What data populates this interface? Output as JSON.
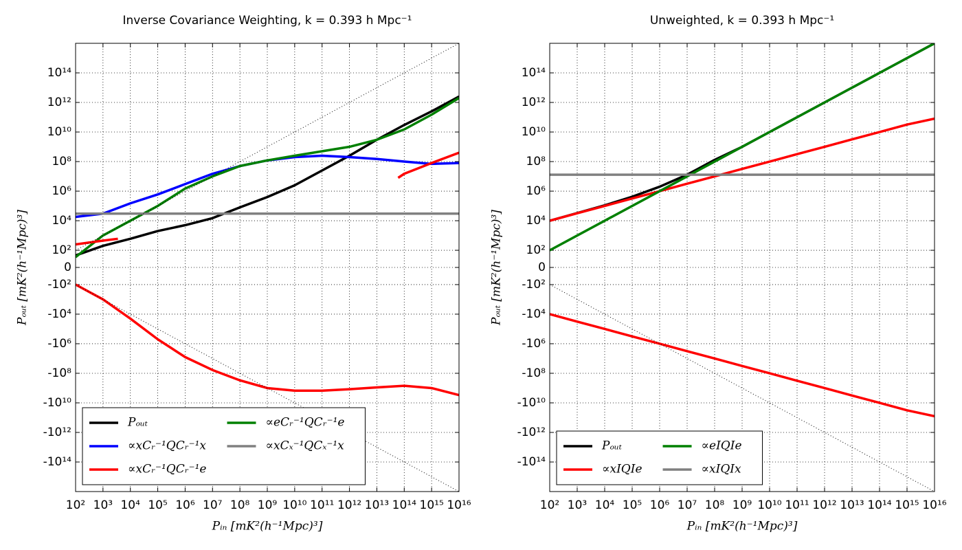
{
  "chart_data": [
    {
      "type": "line",
      "title": "Inverse Covariance Weighting, k = 0.393 h Mpc⁻¹",
      "x_label": "Pᵢₙ [mK²(h⁻¹Mpc)³]",
      "y_label": "Pₒᵤₜ [mK²(h⁻¹Mpc)³]",
      "xscale": "log",
      "yscale": "symlog",
      "linthresh": 100,
      "grid": true,
      "legend": {
        "loc": "lower left",
        "ncol": 2
      },
      "xlim": [
        100.0,
        1e+16
      ],
      "ylim": [
        -1e+16,
        1e+16
      ],
      "xticks": [
        {
          "value": 100.0,
          "label": "10²"
        },
        {
          "value": 1000.0,
          "label": "10³"
        },
        {
          "value": 10000.0,
          "label": "10⁴"
        },
        {
          "value": 100000.0,
          "label": "10⁵"
        },
        {
          "value": 1000000.0,
          "label": "10⁶"
        },
        {
          "value": 10000000.0,
          "label": "10⁷"
        },
        {
          "value": 100000000.0,
          "label": "10⁸"
        },
        {
          "value": 1000000000.0,
          "label": "10⁹"
        },
        {
          "value": 10000000000.0,
          "label": "10¹⁰"
        },
        {
          "value": 100000000000.0,
          "label": "10¹¹"
        },
        {
          "value": 1000000000000.0,
          "label": "10¹²"
        },
        {
          "value": 10000000000000.0,
          "label": "10¹³"
        },
        {
          "value": 100000000000000.0,
          "label": "10¹⁴"
        },
        {
          "value": 1000000000000000.0,
          "label": "10¹⁵"
        },
        {
          "value": 1e+16,
          "label": "10¹⁶"
        }
      ],
      "yticks": [
        {
          "value": 100000000000000.0,
          "label": "10¹⁴"
        },
        {
          "value": 1000000000000.0,
          "label": "10¹²"
        },
        {
          "value": 10000000000.0,
          "label": "10¹⁰"
        },
        {
          "value": 100000000.0,
          "label": "10⁸"
        },
        {
          "value": 1000000.0,
          "label": "10⁶"
        },
        {
          "value": 10000.0,
          "label": "10⁴"
        },
        {
          "value": 100.0,
          "label": "10²"
        },
        0,
        {
          "value": -100.0,
          "label": "-10²"
        },
        {
          "value": -10000.0,
          "label": "-10⁴"
        },
        {
          "value": -1000000.0,
          "label": "-10⁶"
        },
        {
          "value": -100000000.0,
          "label": "-10⁸"
        },
        {
          "value": -10000000000.0,
          "label": "-10¹⁰"
        },
        {
          "value": -1000000000000.0,
          "label": "-10¹²"
        },
        {
          "value": -100000000000000.0,
          "label": "-10¹⁴"
        }
      ],
      "x": [
        100.0,
        1000.0,
        10000.0,
        100000.0,
        1000000.0,
        10000000.0,
        100000000.0,
        1000000000.0,
        10000000000.0,
        100000000000.0,
        1000000000000.0,
        10000000000000.0,
        100000000000000.0,
        1000000000000000.0,
        1e+16
      ],
      "series": [
        {
          "name": "Pₒᵤₜ",
          "color": "#000000",
          "values": [
            70,
            200,
            600,
            2000,
            5000,
            15000,
            80000,
            400000,
            2500000,
            25000000,
            250000000,
            3000000000,
            30000000000,
            250000000000,
            2500000000000
          ]
        },
        {
          "name": "∝xCᵣ⁻¹QCᵣ⁻¹x",
          "color": "#0000ff",
          "values": [
            18000,
            30000,
            150000,
            600000,
            3000000,
            15000000,
            50000000,
            120000000,
            200000000,
            250000000,
            200000000,
            150000000,
            100000000,
            70000000,
            80000000
          ]
        },
        {
          "name": "∝xCᵣ⁻¹QCᵣ⁻¹e",
          "color": "#ff0000",
          "values": [
            -100,
            -1000,
            -20000,
            -500000,
            -8000000,
            -60000000,
            -300000000,
            -1000000000,
            -1500000000,
            -1500000000,
            -1200000000,
            -900000000,
            -700000000,
            -1000000000,
            -3000000000
          ]
        },
        {
          "name": "∝eCᵣ⁻¹QCᵣ⁻¹e",
          "color": "#008000",
          "values": [
            60,
            1000,
            10000,
            100000,
            1500000,
            10000000,
            50000000,
            120000000,
            250000000,
            500000000,
            1000000000,
            3000000000,
            15000000000,
            150000000000,
            2000000000000
          ]
        },
        {
          "name": "∝xCₓ⁻¹QCₓ⁻¹x",
          "color": "#808080",
          "values": [
            30000,
            30000,
            30000,
            30000,
            30000,
            30000,
            30000,
            30000,
            30000,
            30000,
            30000,
            30000,
            30000,
            30000,
            30000
          ]
        },
        {
          "color": "#ff0000",
          "x": [
            100.0,
            1000.0,
            3500
          ],
          "values": [
            250,
            450,
            600
          ]
        },
        {
          "color": "#ff0000",
          "x": [
            60000000000000.0,
            100000000000000.0,
            1000000000000000.0,
            1e+16
          ],
          "values": [
            8000000,
            15000000,
            80000000,
            400000000
          ]
        },
        {
          "color": "#000000",
          "style": "dotted",
          "values": [
            100.0,
            1000.0,
            10000.0,
            100000.0,
            1000000.0,
            10000000.0,
            100000000.0,
            1000000000.0,
            10000000000.0,
            100000000000.0,
            1000000000000.0,
            10000000000000.0,
            100000000000000.0,
            1000000000000000.0,
            1e+16
          ]
        },
        {
          "color": "#000000",
          "style": "dotted",
          "values": [
            -100.0,
            -1000.0,
            -10000.0,
            -100000.0,
            -1000000.0,
            -10000000.0,
            -100000000.0,
            -1000000000.0,
            -10000000000.0,
            -100000000000.0,
            -1000000000000.0,
            -10000000000000.0,
            -100000000000000.0,
            -1000000000000000.0,
            -1e+16
          ]
        }
      ]
    },
    {
      "type": "line",
      "title": "Unweighted, k = 0.393 h Mpc⁻¹",
      "x_label": "Pᵢₙ [mK²(h⁻¹Mpc)³]",
      "y_label": "Pₒᵤₜ [mK²(h⁻¹Mpc)³]",
      "xscale": "log",
      "yscale": "symlog",
      "linthresh": 100,
      "grid": true,
      "legend": {
        "loc": "lower left",
        "ncol": 2
      },
      "xlim": [
        100.0,
        1e+16
      ],
      "ylim": [
        -1e+16,
        1e+16
      ],
      "xticks": [
        {
          "value": 100.0,
          "label": "10²"
        },
        {
          "value": 1000.0,
          "label": "10³"
        },
        {
          "value": 10000.0,
          "label": "10⁴"
        },
        {
          "value": 100000.0,
          "label": "10⁵"
        },
        {
          "value": 1000000.0,
          "label": "10⁶"
        },
        {
          "value": 10000000.0,
          "label": "10⁷"
        },
        {
          "value": 100000000.0,
          "label": "10⁸"
        },
        {
          "value": 1000000000.0,
          "label": "10⁹"
        },
        {
          "value": 10000000000.0,
          "label": "10¹⁰"
        },
        {
          "value": 100000000000.0,
          "label": "10¹¹"
        },
        {
          "value": 1000000000000.0,
          "label": "10¹²"
        },
        {
          "value": 10000000000000.0,
          "label": "10¹³"
        },
        {
          "value": 100000000000000.0,
          "label": "10¹⁴"
        },
        {
          "value": 1000000000000000.0,
          "label": "10¹⁵"
        },
        {
          "value": 1e+16,
          "label": "10¹⁶"
        }
      ],
      "yticks": [
        {
          "value": 100000000000000.0,
          "label": "10¹⁴"
        },
        {
          "value": 1000000000000.0,
          "label": "10¹²"
        },
        {
          "value": 10000000000.0,
          "label": "10¹⁰"
        },
        {
          "value": 100000000.0,
          "label": "10⁸"
        },
        {
          "value": 1000000.0,
          "label": "10⁶"
        },
        {
          "value": 10000.0,
          "label": "10⁴"
        },
        {
          "value": 100.0,
          "label": "10²"
        },
        0,
        {
          "value": -100.0,
          "label": "-10²"
        },
        {
          "value": -10000.0,
          "label": "-10⁴"
        },
        {
          "value": -1000000.0,
          "label": "-10⁶"
        },
        {
          "value": -100000000.0,
          "label": "-10⁸"
        },
        {
          "value": -10000000000.0,
          "label": "-10¹⁰"
        },
        {
          "value": -1000000000000.0,
          "label": "-10¹²"
        },
        {
          "value": -100000000000000.0,
          "label": "-10¹⁴"
        }
      ],
      "x": [
        100.0,
        1000.0,
        10000.0,
        100000.0,
        1000000.0,
        10000000.0,
        100000000.0,
        1000000000.0,
        10000000000.0,
        100000000000.0,
        1000000000000.0,
        10000000000000.0,
        100000000000000.0,
        1000000000000000.0,
        1e+16
      ],
      "series": [
        {
          "name": "Pₒᵤₜ",
          "color": "#000000",
          "values": [
            10000,
            33000,
            110000,
            420000,
            2000000,
            13000000,
            130000000,
            1000000000,
            10000000000,
            100000000000,
            1000000000000,
            10000000000000,
            100000000000000,
            1000000000000000,
            1e+16
          ]
        },
        {
          "name": "∝xIQIe",
          "color": "#ff0000",
          "values": [
            10000,
            32000,
            100000,
            320000,
            1000000,
            3200000,
            10000000,
            32000000,
            100000000,
            320000000,
            1000000000,
            3200000000,
            10000000000,
            32000000000,
            80000000000
          ]
        },
        {
          "name": "∝eIQIe",
          "color": "#008000",
          "values": [
            100.0,
            1000.0,
            10000.0,
            100000.0,
            1000000.0,
            10000000.0,
            100000000.0,
            1000000000.0,
            10000000000.0,
            100000000000.0,
            1000000000000.0,
            10000000000000.0,
            100000000000000.0,
            1000000000000000.0,
            1e+16
          ]
        },
        {
          "name": "∝xIQIx",
          "color": "#808080",
          "values": [
            13000000,
            13000000,
            13000000,
            13000000,
            13000000,
            13000000,
            13000000,
            13000000,
            13000000,
            13000000,
            13000000,
            13000000,
            13000000,
            13000000,
            13000000
          ]
        },
        {
          "color": "#ff0000",
          "values": [
            -10000,
            -32000,
            -100000,
            -320000,
            -1000000,
            -3200000,
            -10000000,
            -32000000,
            -100000000,
            -320000000,
            -1000000000,
            -3200000000,
            -10000000000,
            -32000000000,
            -80000000000
          ]
        },
        {
          "color": "#000000",
          "style": "dotted",
          "values": [
            -100.0,
            -1000.0,
            -10000.0,
            -100000.0,
            -1000000.0,
            -10000000.0,
            -100000000.0,
            -1000000000.0,
            -10000000000.0,
            -100000000000.0,
            -1000000000000.0,
            -10000000000000.0,
            -100000000000000.0,
            -1000000000000000.0,
            -1e+16
          ]
        }
      ]
    }
  ]
}
